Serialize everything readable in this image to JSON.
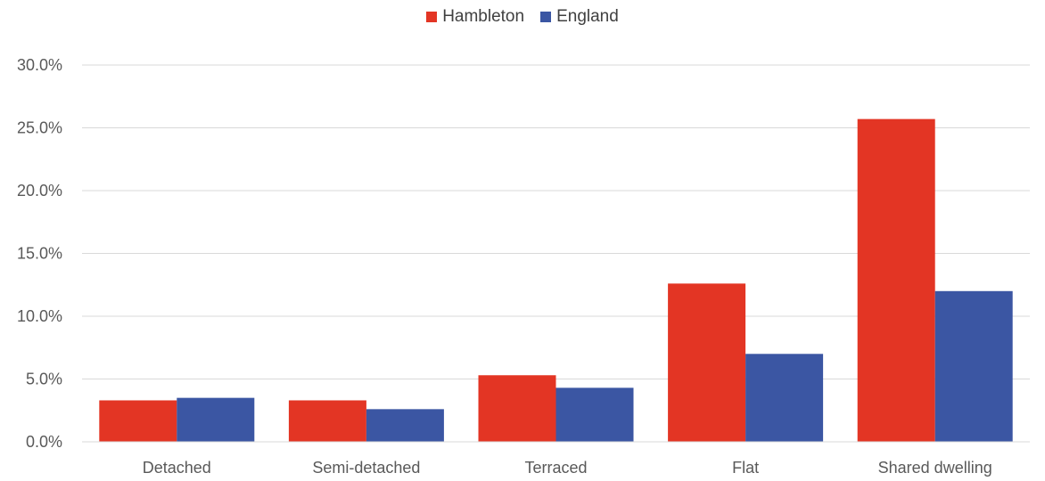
{
  "chart_data": {
    "type": "bar",
    "title": "",
    "xlabel": "",
    "ylabel": "",
    "categories": [
      "Detached",
      "Semi-detached",
      "Terraced",
      "Flat",
      "Shared dwelling"
    ],
    "series": [
      {
        "name": "Hambleton",
        "color": "#E33524",
        "values": [
          3.3,
          3.3,
          5.3,
          12.6,
          25.7
        ]
      },
      {
        "name": "England",
        "color": "#3B56A3",
        "values": [
          3.5,
          2.6,
          4.3,
          7.0,
          12.0
        ]
      }
    ],
    "ylim": [
      0,
      30
    ],
    "yticks": [
      0,
      5,
      10,
      15,
      20,
      25,
      30
    ],
    "ytick_labels": [
      "0.0%",
      "5.0%",
      "10.0%",
      "15.0%",
      "20.0%",
      "25.0%",
      "30.0%"
    ],
    "grid": true,
    "legend_position": "top-center"
  }
}
